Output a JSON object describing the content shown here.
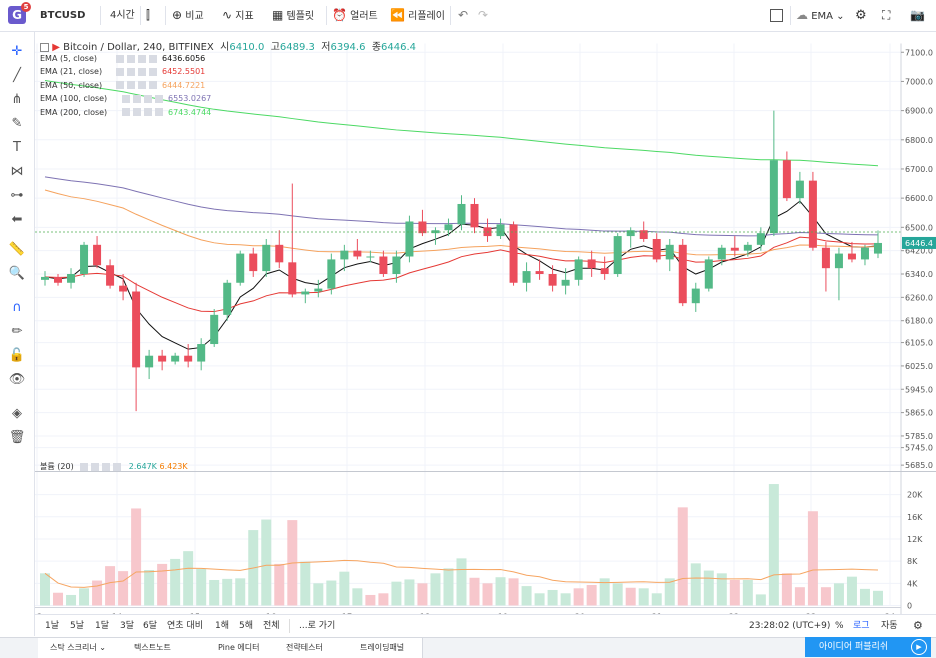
{
  "topbar": {
    "symbol": "BTCUSD",
    "interval": "4시간",
    "compare": "비교",
    "indicators": "지표",
    "templates": "템플릿",
    "alert": "얼러트",
    "replay": "리플레이",
    "ema_label": "EMA"
  },
  "legend": {
    "title": "Bitcoin / Dollar, 240, BITFINEX",
    "open_label": "시",
    "open": "6410.0",
    "high_label": "고",
    "high": "6489.3",
    "low_label": "저",
    "low": "6394.6",
    "close_label": "종",
    "close": "6446.4",
    "emas": [
      {
        "label": "EMA (5, close)",
        "value": "6436.6056",
        "color": "#111111"
      },
      {
        "label": "EMA (21, close)",
        "value": "6452.5501",
        "color": "#e53935"
      },
      {
        "label": "EMA (50, close)",
        "value": "6444.7221",
        "color": "#f5a25d"
      },
      {
        "label": "EMA (100, close)",
        "value": "6553.0267",
        "color": "#7e73b3"
      },
      {
        "label": "EMA (200, close)",
        "value": "6743.4744",
        "color": "#4cd964"
      }
    ],
    "volume_label": "볼륨 (20)",
    "volume_value": "2.647K",
    "volume_ma_value": "6.423K"
  },
  "chart_data": {
    "type": "candlestick",
    "price_axis_ticks": [
      7100,
      7000,
      6900,
      6800,
      6700,
      6600,
      6500,
      6420,
      6340,
      6260,
      6180,
      6105,
      6025,
      5945,
      5865,
      5785,
      5745,
      5685
    ],
    "price_axis_labels": [
      "7100.0",
      "7000.0",
      "6900.0",
      "6800.0",
      "6700.0",
      "6600.0",
      "6500.0",
      "6420.0",
      "6340.0",
      "6260.0",
      "6180.0",
      "6105.0",
      "6025.0",
      "5945.0",
      "5865.0",
      "5785.0",
      "5745.0",
      "5685.0"
    ],
    "last_price_label": "6446.4",
    "last_price": 6446.4,
    "volume_axis_labels": [
      "20K",
      "16K",
      "12K",
      "8K",
      "4K",
      "0"
    ],
    "volume_axis_ticks": [
      20000,
      16000,
      12000,
      8000,
      4000,
      0
    ],
    "x_labels": [
      "13",
      "14",
      "15",
      "16",
      "17",
      "18",
      "19",
      "20",
      "21",
      "22",
      "23",
      "24"
    ],
    "candles": [
      [
        6320,
        6350,
        6300,
        6330
      ],
      [
        6330,
        6340,
        6300,
        6310
      ],
      [
        6310,
        6360,
        6290,
        6340
      ],
      [
        6340,
        6450,
        6330,
        6440
      ],
      [
        6440,
        6470,
        6360,
        6370
      ],
      [
        6370,
        6390,
        6290,
        6300
      ],
      [
        6300,
        6340,
        6250,
        6280
      ],
      [
        6280,
        6310,
        5870,
        6020
      ],
      [
        6020,
        6080,
        5980,
        6060
      ],
      [
        6060,
        6080,
        6010,
        6040
      ],
      [
        6040,
        6070,
        6030,
        6060
      ],
      [
        6060,
        6100,
        6020,
        6040
      ],
      [
        6040,
        6120,
        6010,
        6100
      ],
      [
        6100,
        6220,
        6090,
        6200
      ],
      [
        6200,
        6320,
        6180,
        6310
      ],
      [
        6310,
        6420,
        6300,
        6410
      ],
      [
        6410,
        6430,
        6330,
        6350
      ],
      [
        6350,
        6460,
        6330,
        6440
      ],
      [
        6440,
        6490,
        6360,
        6380
      ],
      [
        6380,
        6650,
        6260,
        6270
      ],
      [
        6270,
        6290,
        6240,
        6280
      ],
      [
        6280,
        6320,
        6260,
        6290
      ],
      [
        6290,
        6410,
        6270,
        6390
      ],
      [
        6390,
        6440,
        6350,
        6420
      ],
      [
        6420,
        6460,
        6390,
        6400
      ],
      [
        6400,
        6420,
        6380,
        6400
      ],
      [
        6400,
        6420,
        6330,
        6340
      ],
      [
        6340,
        6420,
        6310,
        6400
      ],
      [
        6400,
        6540,
        6380,
        6520
      ],
      [
        6520,
        6560,
        6470,
        6480
      ],
      [
        6480,
        6500,
        6440,
        6490
      ],
      [
        6490,
        6530,
        6470,
        6510
      ],
      [
        6510,
        6610,
        6490,
        6580
      ],
      [
        6580,
        6600,
        6480,
        6500
      ],
      [
        6500,
        6530,
        6450,
        6470
      ],
      [
        6470,
        6530,
        6460,
        6510
      ],
      [
        6510,
        6520,
        6300,
        6310
      ],
      [
        6310,
        6380,
        6280,
        6350
      ],
      [
        6350,
        6390,
        6320,
        6340
      ],
      [
        6340,
        6370,
        6280,
        6300
      ],
      [
        6300,
        6360,
        6270,
        6320
      ],
      [
        6320,
        6400,
        6300,
        6390
      ],
      [
        6390,
        6420,
        6330,
        6360
      ],
      [
        6360,
        6400,
        6320,
        6340
      ],
      [
        6340,
        6480,
        6330,
        6470
      ],
      [
        6470,
        6500,
        6430,
        6490
      ],
      [
        6490,
        6520,
        6450,
        6460
      ],
      [
        6460,
        6480,
        6380,
        6390
      ],
      [
        6390,
        6460,
        6350,
        6440
      ],
      [
        6440,
        6460,
        6230,
        6240
      ],
      [
        6240,
        6310,
        6210,
        6290
      ],
      [
        6290,
        6400,
        6280,
        6390
      ],
      [
        6390,
        6440,
        6370,
        6430
      ],
      [
        6430,
        6470,
        6400,
        6420
      ],
      [
        6420,
        6450,
        6400,
        6440
      ],
      [
        6440,
        6500,
        6420,
        6480
      ],
      [
        6480,
        6900,
        6470,
        6730
      ],
      [
        6730,
        6760,
        6590,
        6600
      ],
      [
        6600,
        6690,
        6580,
        6660
      ],
      [
        6660,
        6690,
        6420,
        6430
      ],
      [
        6430,
        6450,
        6280,
        6360
      ],
      [
        6360,
        6430,
        6250,
        6410
      ],
      [
        6410,
        6450,
        6380,
        6390
      ],
      [
        6390,
        6440,
        6370,
        6430
      ],
      [
        6410,
        6489.3,
        6394.6,
        6446.4
      ]
    ],
    "volumes": [
      [
        5800,
        "up"
      ],
      [
        2300,
        "down"
      ],
      [
        1900,
        "up"
      ],
      [
        3100,
        "up"
      ],
      [
        4500,
        "down"
      ],
      [
        7100,
        "down"
      ],
      [
        6200,
        "down"
      ],
      [
        17500,
        "down"
      ],
      [
        6400,
        "up"
      ],
      [
        7500,
        "down"
      ],
      [
        8400,
        "up"
      ],
      [
        9800,
        "up"
      ],
      [
        6600,
        "up"
      ],
      [
        4600,
        "up"
      ],
      [
        4800,
        "up"
      ],
      [
        4900,
        "up"
      ],
      [
        13600,
        "up"
      ],
      [
        15500,
        "up"
      ],
      [
        7500,
        "down"
      ],
      [
        15400,
        "down"
      ],
      [
        7900,
        "up"
      ],
      [
        4000,
        "up"
      ],
      [
        4500,
        "up"
      ],
      [
        6100,
        "up"
      ],
      [
        3100,
        "up"
      ],
      [
        1900,
        "down"
      ],
      [
        2200,
        "down"
      ],
      [
        4300,
        "up"
      ],
      [
        4700,
        "up"
      ],
      [
        4000,
        "down"
      ],
      [
        5800,
        "up"
      ],
      [
        6700,
        "up"
      ],
      [
        8500,
        "up"
      ],
      [
        5000,
        "down"
      ],
      [
        4000,
        "down"
      ],
      [
        5100,
        "up"
      ],
      [
        4900,
        "down"
      ],
      [
        3500,
        "up"
      ],
      [
        2200,
        "up"
      ],
      [
        2800,
        "up"
      ],
      [
        2200,
        "up"
      ],
      [
        3100,
        "down"
      ],
      [
        3700,
        "down"
      ],
      [
        4900,
        "up"
      ],
      [
        4000,
        "up"
      ],
      [
        3200,
        "down"
      ],
      [
        3100,
        "up"
      ],
      [
        2200,
        "up"
      ],
      [
        4900,
        "up"
      ],
      [
        17700,
        "down"
      ],
      [
        7600,
        "up"
      ],
      [
        6300,
        "up"
      ],
      [
        5800,
        "up"
      ],
      [
        4600,
        "down"
      ],
      [
        4600,
        "up"
      ],
      [
        2000,
        "up"
      ],
      [
        21900,
        "up"
      ],
      [
        5800,
        "down"
      ],
      [
        3300,
        "down"
      ],
      [
        17000,
        "down"
      ],
      [
        3300,
        "down"
      ],
      [
        4000,
        "up"
      ],
      [
        5200,
        "up"
      ],
      [
        3000,
        "up"
      ],
      [
        2647,
        "up"
      ]
    ]
  },
  "right_buttons": {
    "percent": "%",
    "log": "로그",
    "auto": "자동"
  },
  "bottom": {
    "ranges": [
      "1날",
      "5날",
      "1달",
      "3달",
      "6달",
      "연초 대비",
      "1해",
      "5해",
      "전체"
    ],
    "goto": "...로 가기",
    "clock": "23:28:02 (UTC+9)"
  },
  "footer": {
    "tabs": [
      "스탁 스크리너",
      "텍스트노트",
      "Pine 에디터",
      "전략테스터",
      "트레이딩패널"
    ],
    "idea_button": "아이디어 퍼블리쉬"
  }
}
